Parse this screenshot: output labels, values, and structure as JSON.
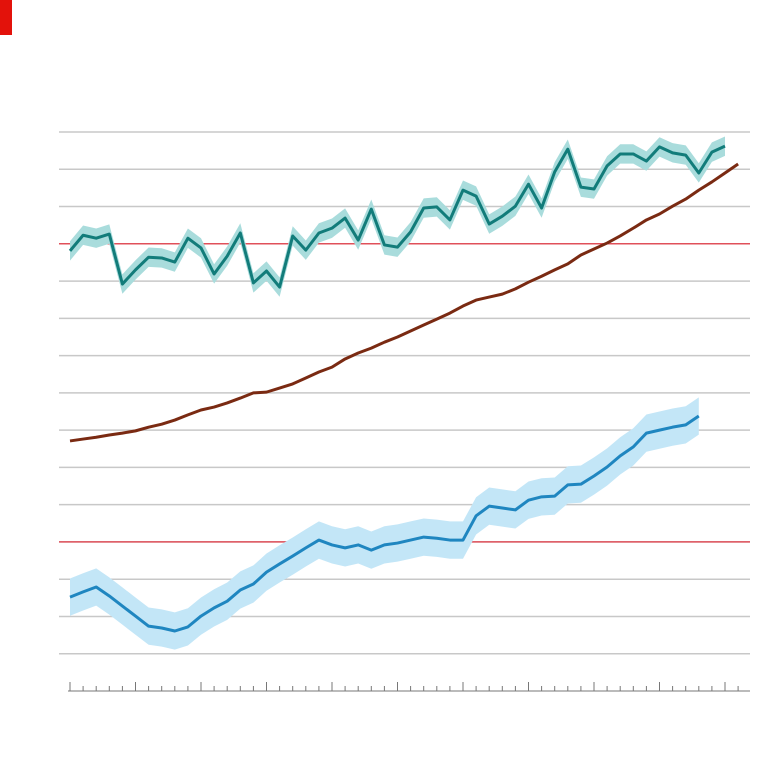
{
  "chart_data": {
    "type": "line",
    "ylim": [
      0,
      150
    ],
    "yticks": [
      10,
      20,
      30,
      40,
      50,
      60,
      70,
      80,
      90,
      100,
      110,
      120,
      130,
      140,
      150
    ],
    "grid": true,
    "reference_lines": [
      120,
      40
    ],
    "reference_color": "#e0505a",
    "series": [
      {
        "color": "#127c7a",
        "band_color": "#a9dcdc",
        "band": 2.6,
        "values": [
          118.1,
          122.3,
          121.5,
          122.6,
          109.2,
          113.0,
          116.4,
          116.2,
          115.1,
          121.5,
          118.9,
          111.9,
          116.7,
          122.9,
          109.5,
          112.7,
          108.4,
          122.1,
          118.3,
          122.9,
          124.2,
          126.9,
          121.0,
          129.3,
          119.7,
          119.1,
          123.2,
          129.6,
          129.9,
          126.4,
          134.4,
          132.8,
          125.3,
          127.4,
          130.1,
          136.0,
          129.6,
          139.3,
          145.4,
          135.2,
          134.7,
          140.9,
          144.1,
          144.1,
          142.2,
          146.0,
          144.4,
          143.8,
          139.0,
          144.6,
          146.2,
          null
        ]
      },
      {
        "color": "#7a2a12",
        "values": [
          67.1,
          67.6,
          68.1,
          68.7,
          69.2,
          69.8,
          70.8,
          71.6,
          72.7,
          74.1,
          75.4,
          76.2,
          77.3,
          78.6,
          80.0,
          80.2,
          81.3,
          82.4,
          84.0,
          85.6,
          86.9,
          89.1,
          90.7,
          92.0,
          93.6,
          95.0,
          96.6,
          98.2,
          99.8,
          101.4,
          103.3,
          104.9,
          105.7,
          106.5,
          107.9,
          109.7,
          111.3,
          113.0,
          114.6,
          117.0,
          118.6,
          120.2,
          122.1,
          124.2,
          126.4,
          128.0,
          130.1,
          132.0,
          134.4,
          136.6,
          139.0,
          141.4
        ]
      },
      {
        "color": "#1f86c0",
        "band_color": "#c3e6f7",
        "band": 5,
        "values": [
          25.2,
          26.6,
          27.9,
          25.5,
          22.8,
          20.1,
          17.4,
          16.9,
          16.1,
          17.2,
          20.1,
          22.3,
          24.1,
          27.1,
          28.7,
          31.9,
          34.1,
          36.2,
          38.4,
          40.5,
          39.2,
          38.4,
          39.2,
          37.8,
          39.2,
          39.7,
          40.5,
          41.3,
          41.0,
          40.5,
          40.5,
          47.0,
          49.6,
          49.1,
          48.6,
          51.2,
          52.1,
          52.3,
          55.3,
          55.5,
          57.7,
          60.1,
          63.1,
          65.5,
          69.2,
          70.0,
          70.8,
          71.4,
          73.8,
          null,
          null,
          null
        ]
      }
    ]
  }
}
